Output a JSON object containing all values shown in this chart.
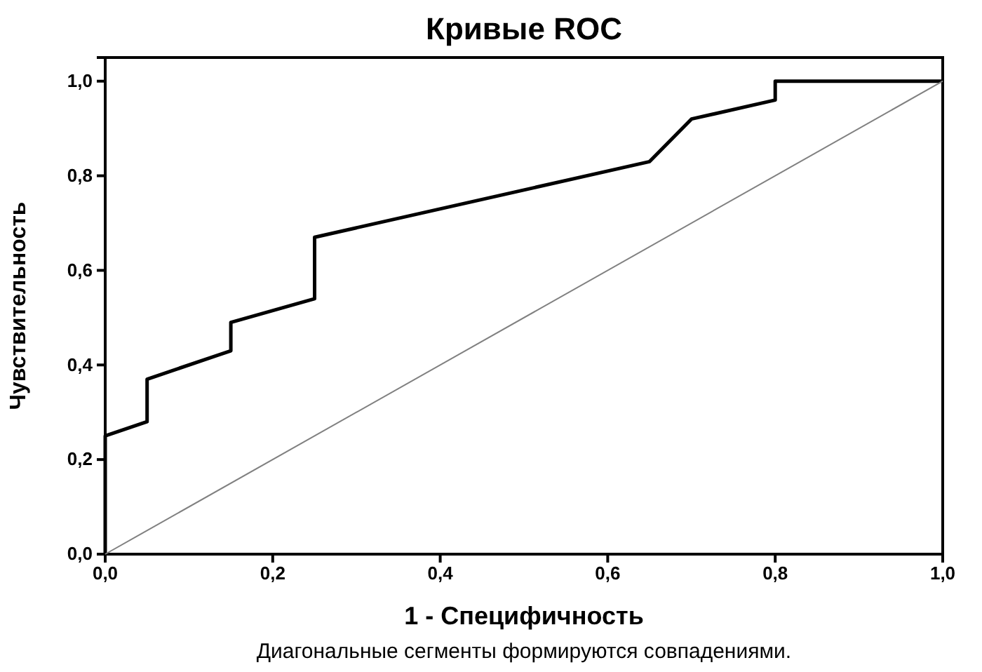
{
  "chart_data": {
    "type": "line",
    "title": "Кривые ROC",
    "xlabel": "1 - Специфичность",
    "ylabel": "Чувствительность",
    "annotations": [
      "Диагональные сегменты формируются совпадениями."
    ],
    "series": [
      {
        "color": "#000000",
        "x": [
          0,
          0,
          0.05,
          0.05,
          0.15,
          0.15,
          0.25,
          0.25,
          0.65,
          0.7,
          0.8,
          0.8,
          1.0
        ],
        "values": [
          0,
          0.25,
          0.28,
          0.37,
          0.43,
          0.49,
          0.54,
          0.67,
          0.83,
          0.92,
          0.96,
          1.0,
          1.0
        ]
      },
      {
        "color": "#808080",
        "x": [
          0,
          1.0
        ],
        "values": [
          0,
          1.0
        ]
      }
    ],
    "xlim": [
      0,
      1.0
    ],
    "ylim": [
      0,
      1.05
    ],
    "xticks": [
      {
        "value": 0,
        "label": "0,0"
      },
      {
        "value": 0.2,
        "label": "0,2"
      },
      {
        "value": 0.4,
        "label": "0,4"
      },
      {
        "value": 0.6,
        "label": "0,6"
      },
      {
        "value": 0.8,
        "label": "0,8"
      },
      {
        "value": 1.0,
        "label": "1,0"
      }
    ],
    "yticks": [
      {
        "value": 0,
        "label": "0,0"
      },
      {
        "value": 0.2,
        "label": "0,2"
      },
      {
        "value": 0.4,
        "label": "0,4"
      },
      {
        "value": 0.6,
        "label": "0,6"
      },
      {
        "value": 0.8,
        "label": "0,8"
      },
      {
        "value": 1.0,
        "label": "1,0"
      }
    ],
    "grid": false,
    "marker": "none",
    "line_style": "solid"
  }
}
